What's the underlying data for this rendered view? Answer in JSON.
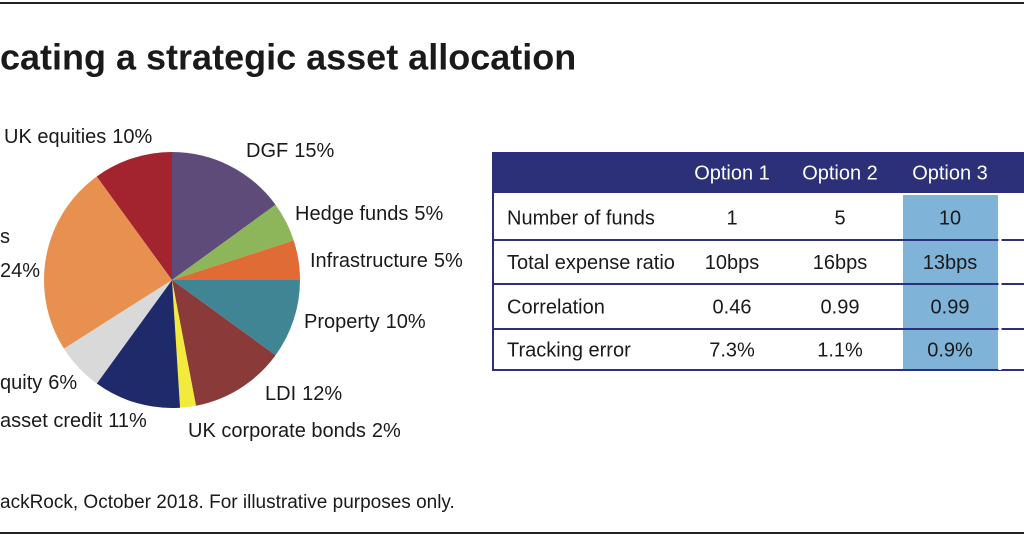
{
  "title": "cating a strategic asset allocation",
  "chart_data": {
    "type": "pie",
    "categories": [
      "DGF",
      "Hedge funds",
      "Infrastructure",
      "Property",
      "LDI",
      "UK corporate bonds",
      "asset credit",
      "quity",
      "s",
      "UK equities"
    ],
    "values": [
      15,
      5,
      5,
      10,
      12,
      2,
      11,
      6,
      24,
      10
    ],
    "value_labels": [
      "15%",
      "5%",
      "5%",
      "10%",
      "12%",
      "2%",
      "11%",
      "6%",
      "24%",
      "10%"
    ],
    "colors": [
      "#5e4b7a",
      "#8db55a",
      "#e06b35",
      "#3f8593",
      "#8b3a3a",
      "#f2ea3c",
      "#1f2a6b",
      "#d9d9d9",
      "#e8904f",
      "#a3232e"
    ]
  },
  "table": {
    "header": [
      "Option 1",
      "Option 2",
      "Option 3"
    ],
    "rows": [
      [
        "Number of funds",
        "1",
        "5",
        "10"
      ],
      [
        "Total expense ratio",
        "10bps",
        "16bps",
        "13bps"
      ],
      [
        "Correlation",
        "0.46",
        "0.99",
        "0.99"
      ],
      [
        "Tracking error",
        "7.3%",
        "1.1%",
        "0.9%"
      ]
    ]
  },
  "source": "ackRock, October 2018. For illustrative purposes only."
}
